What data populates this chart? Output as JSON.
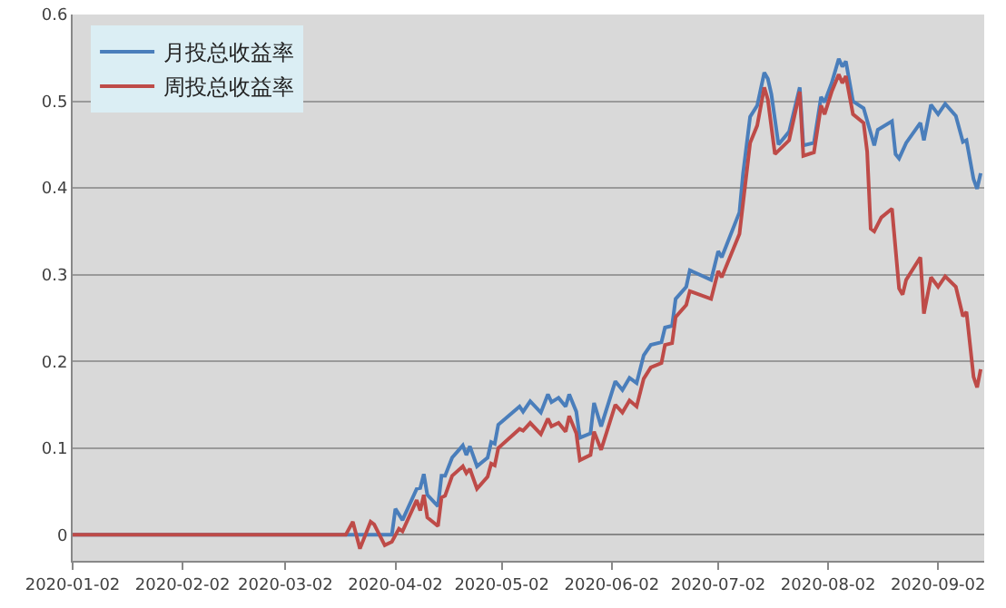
{
  "chart_data": {
    "type": "line",
    "legend": "top left",
    "grid": "y",
    "line_style": "solid",
    "marker": "none",
    "ylim": [
      -0.03,
      0.6
    ],
    "yticks": [
      0,
      0.1,
      0.2,
      0.3,
      0.4,
      0.5,
      0.6
    ],
    "xlim": [
      "2020-01-02",
      "2020-09-15"
    ],
    "xticks": [
      "2020-01-02",
      "2020-02-02",
      "2020-03-02",
      "2020-04-02",
      "2020-05-02",
      "2020-06-02",
      "2020-07-02",
      "2020-08-02",
      "2020-09-02"
    ],
    "series": [
      {
        "name": "月投总收益率",
        "color": "#4a7ebb",
        "x": [
          "2020-01-02",
          "2020-03-19",
          "2020-04-01",
          "2020-04-02",
          "2020-04-04",
          "2020-04-08",
          "2020-04-09",
          "2020-04-10",
          "2020-04-11",
          "2020-04-14",
          "2020-04-15",
          "2020-04-16",
          "2020-04-18",
          "2020-04-21",
          "2020-04-22",
          "2020-04-23",
          "2020-04-25",
          "2020-04-28",
          "2020-04-29",
          "2020-04-30",
          "2020-05-01",
          "2020-05-07",
          "2020-05-08",
          "2020-05-10",
          "2020-05-13",
          "2020-05-15",
          "2020-05-16",
          "2020-05-18",
          "2020-05-20",
          "2020-05-21",
          "2020-05-23",
          "2020-05-24",
          "2020-05-27",
          "2020-05-28",
          "2020-05-30",
          "2020-06-03",
          "2020-06-05",
          "2020-06-07",
          "2020-06-09",
          "2020-06-11",
          "2020-06-13",
          "2020-06-16",
          "2020-06-17",
          "2020-06-19",
          "2020-06-20",
          "2020-06-23",
          "2020-06-24",
          "2020-06-30",
          "2020-07-02",
          "2020-07-03",
          "2020-07-08",
          "2020-07-09",
          "2020-07-11",
          "2020-07-13",
          "2020-07-15",
          "2020-07-16",
          "2020-07-17",
          "2020-07-19",
          "2020-07-22",
          "2020-07-25",
          "2020-07-26",
          "2020-07-29",
          "2020-07-31",
          "2020-08-01",
          "2020-08-03",
          "2020-08-05",
          "2020-08-06",
          "2020-08-07",
          "2020-08-09",
          "2020-08-12",
          "2020-08-15",
          "2020-08-16",
          "2020-08-20",
          "2020-08-21",
          "2020-08-22",
          "2020-08-24",
          "2020-08-28",
          "2020-08-29",
          "2020-08-31",
          "2020-09-02",
          "2020-09-04",
          "2020-09-07",
          "2020-09-09",
          "2020-09-10",
          "2020-09-12",
          "2020-09-13",
          "2020-09-14"
        ],
        "values": [
          0,
          0,
          0,
          0.03,
          0.017,
          0.053,
          0.054,
          0.07,
          0.046,
          0.033,
          0.068,
          0.068,
          0.089,
          0.103,
          0.092,
          0.102,
          0.079,
          0.089,
          0.107,
          0.105,
          0.127,
          0.148,
          0.142,
          0.154,
          0.141,
          0.162,
          0.153,
          0.158,
          0.148,
          0.162,
          0.142,
          0.112,
          0.117,
          0.152,
          0.125,
          0.177,
          0.167,
          0.181,
          0.175,
          0.207,
          0.219,
          0.222,
          0.239,
          0.241,
          0.272,
          0.286,
          0.305,
          0.294,
          0.327,
          0.32,
          0.372,
          0.416,
          0.482,
          0.495,
          0.533,
          0.526,
          0.508,
          0.45,
          0.465,
          0.516,
          0.449,
          0.452,
          0.505,
          0.499,
          0.521,
          0.549,
          0.54,
          0.546,
          0.5,
          0.492,
          0.449,
          0.467,
          0.477,
          0.439,
          0.434,
          0.452,
          0.475,
          0.455,
          0.496,
          0.485,
          0.497,
          0.483,
          0.453,
          0.455,
          0.41,
          0.399,
          0.417
        ]
      },
      {
        "name": "周投总收益率",
        "color": "#be4b48",
        "x": [
          "2020-01-02",
          "2020-03-19",
          "2020-03-21",
          "2020-03-23",
          "2020-03-26",
          "2020-03-27",
          "2020-03-30",
          "2020-04-01",
          "2020-04-03",
          "2020-04-04",
          "2020-04-08",
          "2020-04-09",
          "2020-04-10",
          "2020-04-11",
          "2020-04-14",
          "2020-04-15",
          "2020-04-16",
          "2020-04-18",
          "2020-04-21",
          "2020-04-22",
          "2020-04-23",
          "2020-04-25",
          "2020-04-28",
          "2020-04-29",
          "2020-04-30",
          "2020-05-01",
          "2020-05-07",
          "2020-05-08",
          "2020-05-10",
          "2020-05-13",
          "2020-05-15",
          "2020-05-16",
          "2020-05-18",
          "2020-05-20",
          "2020-05-21",
          "2020-05-23",
          "2020-05-24",
          "2020-05-27",
          "2020-05-28",
          "2020-05-30",
          "2020-06-03",
          "2020-06-05",
          "2020-06-07",
          "2020-06-09",
          "2020-06-11",
          "2020-06-13",
          "2020-06-16",
          "2020-06-17",
          "2020-06-19",
          "2020-06-20",
          "2020-06-23",
          "2020-06-24",
          "2020-06-30",
          "2020-07-02",
          "2020-07-03",
          "2020-07-08",
          "2020-07-11",
          "2020-07-13",
          "2020-07-15",
          "2020-07-16",
          "2020-07-18",
          "2020-07-22",
          "2020-07-25",
          "2020-07-26",
          "2020-07-29",
          "2020-07-31",
          "2020-08-01",
          "2020-08-03",
          "2020-08-05",
          "2020-08-06",
          "2020-08-07",
          "2020-08-09",
          "2020-08-12",
          "2020-08-13",
          "2020-08-14",
          "2020-08-15",
          "2020-08-17",
          "2020-08-20",
          "2020-08-22",
          "2020-08-23",
          "2020-08-24",
          "2020-08-28",
          "2020-08-29",
          "2020-08-31",
          "2020-09-02",
          "2020-09-04",
          "2020-09-07",
          "2020-09-09",
          "2020-09-10",
          "2020-09-12",
          "2020-09-13",
          "2020-09-14"
        ],
        "values": [
          0,
          0,
          0.015,
          -0.016,
          0.015,
          0.012,
          -0.012,
          -0.008,
          0.007,
          0.004,
          0.04,
          0.028,
          0.046,
          0.02,
          0.01,
          0.043,
          0.045,
          0.068,
          0.079,
          0.071,
          0.076,
          0.053,
          0.067,
          0.082,
          0.08,
          0.1,
          0.122,
          0.12,
          0.129,
          0.116,
          0.134,
          0.125,
          0.129,
          0.119,
          0.137,
          0.117,
          0.086,
          0.092,
          0.119,
          0.098,
          0.15,
          0.141,
          0.155,
          0.148,
          0.18,
          0.193,
          0.198,
          0.219,
          0.221,
          0.251,
          0.265,
          0.281,
          0.272,
          0.304,
          0.297,
          0.347,
          0.452,
          0.472,
          0.516,
          0.502,
          0.439,
          0.455,
          0.511,
          0.437,
          0.441,
          0.495,
          0.485,
          0.511,
          0.531,
          0.521,
          0.529,
          0.485,
          0.475,
          0.442,
          0.353,
          0.35,
          0.366,
          0.376,
          0.284,
          0.277,
          0.294,
          0.32,
          0.255,
          0.297,
          0.286,
          0.298,
          0.286,
          0.252,
          0.257,
          0.182,
          0.17,
          0.191
        ]
      }
    ]
  }
}
